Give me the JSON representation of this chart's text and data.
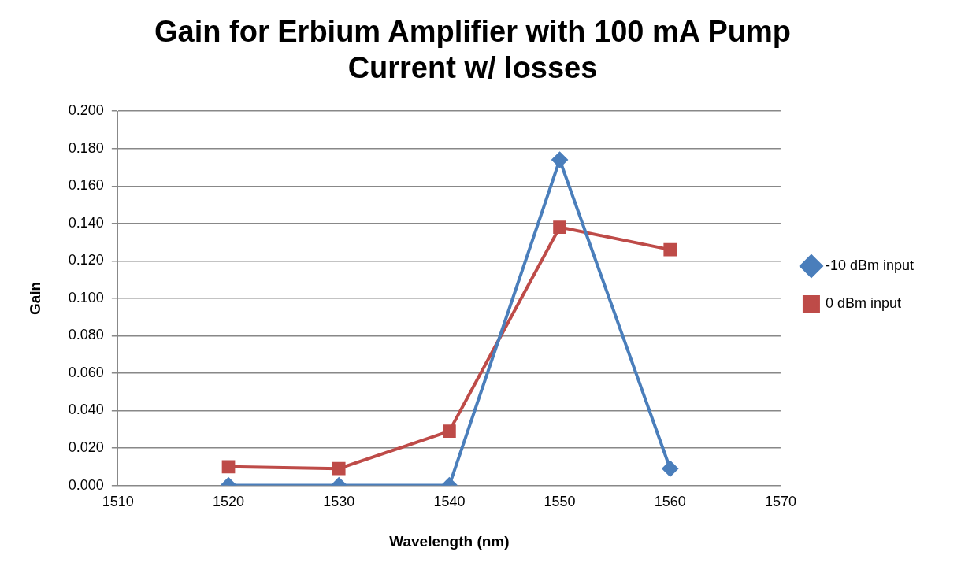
{
  "chart_data": {
    "type": "line",
    "title": "Gain for Erbium Amplifier with 100 mA Pump Current w/ losses",
    "xlabel": "Wavelength (nm)",
    "ylabel": "Gain",
    "x": [
      1520,
      1530,
      1540,
      1550,
      1560
    ],
    "series": [
      {
        "name": "-10 dBm input",
        "color": "#4a7ebb",
        "marker": "diamond",
        "values": [
          0,
          0,
          0,
          0.174,
          0.009
        ]
      },
      {
        "name": "0 dBm input",
        "color": "#be4b48",
        "marker": "square",
        "values": [
          0.01,
          0.009,
          0.029,
          0.138,
          0.126
        ]
      }
    ],
    "xlim": [
      1510,
      1570
    ],
    "xticks": [
      1510,
      1520,
      1530,
      1540,
      1550,
      1560,
      1570
    ],
    "ylim": [
      0,
      0.2
    ],
    "yticks": [
      {
        "value": 0,
        "label": "0.000"
      },
      {
        "value": 0.02,
        "label": "0.020"
      },
      {
        "value": 0.04,
        "label": "0.040"
      },
      {
        "value": 0.06,
        "label": "0.060"
      },
      {
        "value": 0.08,
        "label": "0.080"
      },
      {
        "value": 0.1,
        "label": "0.100"
      },
      {
        "value": 0.12,
        "label": "0.120"
      },
      {
        "value": 0.14,
        "label": "0.140"
      },
      {
        "value": 0.16,
        "label": "0.160"
      },
      {
        "value": 0.18,
        "label": "0.180"
      },
      {
        "value": 0.2,
        "label": "0.200"
      }
    ],
    "grid": "y",
    "legend": "right",
    "line_style": "solid"
  }
}
